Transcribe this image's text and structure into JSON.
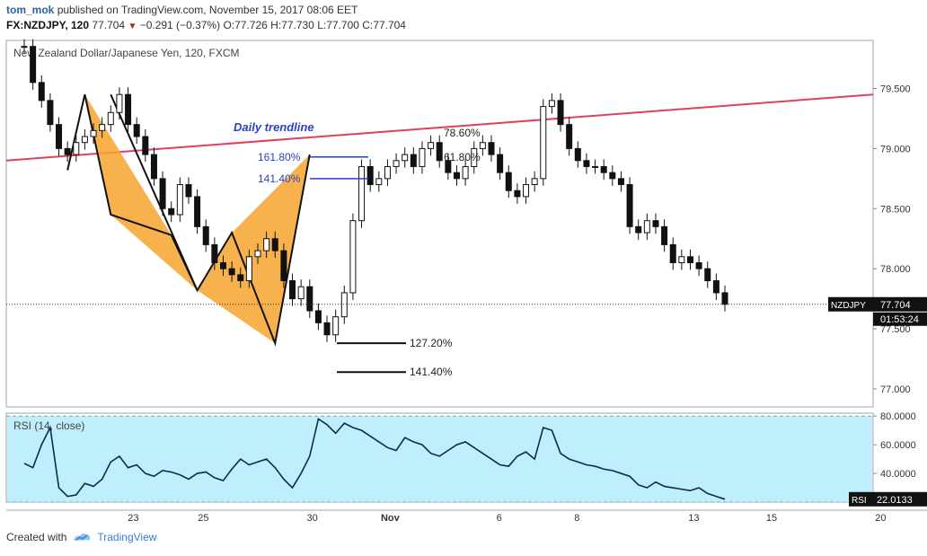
{
  "header": {
    "author": "tom_mok",
    "published_text": "published on TradingView.com, November 15, 2017 08:06 EET",
    "symbol": "FX:NZDJPY, 120",
    "last": "77.704",
    "change_arrow": "▼",
    "change": "−0.291 (−0.37%)",
    "open": "O:77.726",
    "high": "H:77.730",
    "low": "L:77.700",
    "close": "C:77.704"
  },
  "footer": {
    "created_with": "Created with",
    "brand": "TradingView"
  },
  "chart_data": [
    {
      "type": "candlestick",
      "title": "New Zealand Dollar/Japanese Yen, 120, FXCM",
      "ylim": [
        76.85,
        79.9
      ],
      "y_ticks": [
        79.5,
        79.0,
        78.5,
        78.0,
        77.5,
        77.0
      ],
      "y_tick_labels": [
        "79.500",
        "79.000",
        "78.500",
        "78.000",
        "77.500",
        "77.000"
      ],
      "x_tick_labels": [
        "23",
        "25",
        "30",
        "Nov",
        "6",
        "8",
        "13",
        "15",
        "20"
      ],
      "price_series_x": [
        0,
        1,
        2,
        3,
        4,
        5,
        6,
        7,
        8,
        9,
        10,
        11,
        12,
        13,
        14,
        15,
        16,
        17,
        18,
        19,
        20,
        21,
        22,
        23,
        24,
        25,
        26,
        27,
        28,
        29,
        30,
        31,
        32,
        33,
        34,
        35,
        36,
        37,
        38,
        39,
        40,
        41,
        42,
        43,
        44,
        45,
        46,
        47,
        48,
        49,
        50,
        51,
        52,
        53,
        54,
        55,
        56,
        57,
        58,
        59,
        60,
        61,
        62,
        63,
        64,
        65,
        66,
        67,
        68,
        69,
        70,
        71,
        72,
        73,
        74,
        75,
        76,
        77,
        78,
        79,
        80,
        81
      ],
      "price_series_close": [
        79.85,
        79.55,
        79.4,
        79.2,
        79.0,
        78.95,
        79.05,
        79.1,
        79.15,
        79.2,
        79.3,
        79.45,
        79.2,
        79.1,
        78.95,
        78.75,
        78.5,
        78.45,
        78.7,
        78.6,
        78.35,
        78.2,
        78.05,
        78.0,
        77.95,
        77.9,
        78.1,
        78.15,
        78.25,
        78.15,
        77.9,
        77.75,
        77.85,
        77.65,
        77.55,
        77.45,
        77.6,
        77.8,
        78.4,
        78.85,
        78.7,
        78.75,
        78.85,
        78.9,
        78.95,
        78.85,
        79.0,
        79.05,
        78.9,
        78.8,
        78.75,
        78.85,
        79.0,
        79.05,
        78.95,
        78.8,
        78.65,
        78.6,
        78.7,
        78.75,
        79.35,
        79.4,
        79.2,
        79.0,
        78.9,
        78.85,
        78.85,
        78.8,
        78.75,
        78.7,
        78.35,
        78.3,
        78.4,
        78.35,
        78.2,
        78.05,
        78.1,
        78.05,
        78.0,
        77.9,
        77.8,
        77.704
      ],
      "last_price_label": "NZDJPY",
      "last_price": "77.704",
      "countdown": "01:53:24",
      "trendline_label": "Daily trendline",
      "trendline": {
        "x": [
          0,
          81
        ],
        "y": [
          78.9,
          79.45
        ]
      },
      "harmonic_pattern_1": {
        "x": [
          5,
          7,
          10,
          17,
          20
        ],
        "y": [
          78.82,
          79.45,
          78.45,
          78.28,
          77.82
        ]
      },
      "harmonic_pattern_2": {
        "x": [
          10,
          20,
          24,
          29,
          33
        ],
        "y": [
          79.45,
          77.82,
          78.3,
          77.38,
          78.95
        ]
      },
      "fib_labels": [
        {
          "text": "161.80%",
          "y": 78.93
        },
        {
          "text": "141.40%",
          "y": 78.75
        },
        {
          "text": "127.20%",
          "y": 77.38
        },
        {
          "text": "141.40%",
          "y": 77.14
        },
        {
          "text": "78.60%",
          "y": 79.13
        },
        {
          "text": "61.80%",
          "y": 78.93
        }
      ]
    },
    {
      "type": "line",
      "title": "RSI (14, close)",
      "ylim": [
        20,
        82
      ],
      "y_ticks": [
        80,
        60,
        40
      ],
      "y_tick_labels": [
        "80.0000",
        "60.0000",
        "40.0000"
      ],
      "bands": [
        20,
        80
      ],
      "last_label": "RSI",
      "last_value": "22.0133",
      "x": [
        0,
        1,
        2,
        3,
        4,
        5,
        6,
        7,
        8,
        9,
        10,
        11,
        12,
        13,
        14,
        15,
        16,
        17,
        18,
        19,
        20,
        21,
        22,
        23,
        24,
        25,
        26,
        27,
        28,
        29,
        30,
        31,
        32,
        33,
        34,
        35,
        36,
        37,
        38,
        39,
        40,
        41,
        42,
        43,
        44,
        45,
        46,
        47,
        48,
        49,
        50,
        51,
        52,
        53,
        54,
        55,
        56,
        57,
        58,
        59,
        60,
        61,
        62,
        63,
        64,
        65,
        66,
        67,
        68,
        69,
        70,
        71,
        72,
        73,
        74,
        75,
        76,
        77,
        78,
        79,
        80,
        81
      ],
      "values": [
        47,
        44,
        60,
        72,
        30,
        24,
        25,
        33,
        31,
        36,
        48,
        52,
        44,
        46,
        40,
        38,
        42,
        41,
        39,
        36,
        40,
        41,
        37,
        35,
        43,
        50,
        46,
        48,
        50,
        44,
        36,
        30,
        40,
        52,
        78,
        74,
        68,
        75,
        72,
        70,
        66,
        62,
        58,
        56,
        65,
        62,
        60,
        54,
        52,
        56,
        60,
        62,
        58,
        54,
        50,
        46,
        45,
        52,
        55,
        50,
        72,
        70,
        54,
        50,
        48,
        46,
        45,
        43,
        42,
        40,
        38,
        32,
        30,
        34,
        31,
        30,
        29,
        28,
        30,
        26,
        24,
        22
      ]
    }
  ]
}
